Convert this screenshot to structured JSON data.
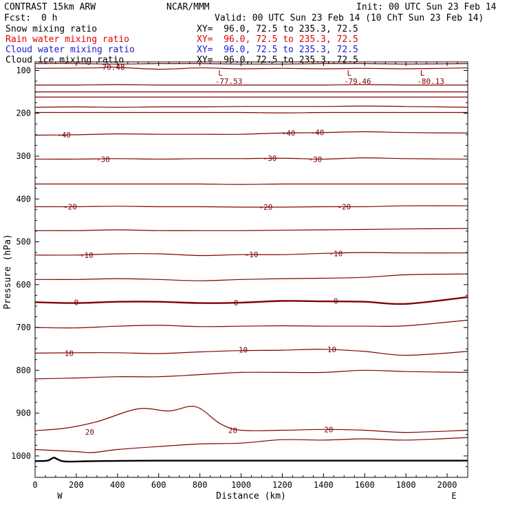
{
  "header": {
    "model": "CONTRAST 15km ARW",
    "org": "NCAR/MMM",
    "init": "Init: 00 UTC Sun 23 Feb 14",
    "fcst_label": "Fcst:",
    "fcst_value": "0 h",
    "valid": "Valid: 00 UTC Sun 23 Feb 14 (10 ChT Sun 23 Feb 14)"
  },
  "fields": [
    {
      "name": "Snow mixing ratio",
      "xy": "XY=  96.0, 72.5 to 235.3, 72.5",
      "color": "#000000"
    },
    {
      "name": "Rain water mixing ratio",
      "xy": "XY=  96.0, 72.5 to 235.3, 72.5",
      "color": "#e00000"
    },
    {
      "name": "Cloud water mixing ratio",
      "xy": "XY=  96.0, 72.5 to 235.3, 72.5",
      "color": "#1a1ad0"
    },
    {
      "name": "Cloud ice mixing ratio",
      "xy": "XY=  96.0, 72.5 to 235.3, 72.5",
      "color": "#000000"
    }
  ],
  "chart_data": {
    "type": "line",
    "xlabel": "Distance (km)",
    "ylabel": "Pressure (hPa)",
    "xlim": [
      0,
      2100
    ],
    "ylim": [
      1050,
      80
    ],
    "x_ticks": [
      0,
      200,
      400,
      600,
      800,
      1000,
      1200,
      1400,
      1600,
      1800,
      2000
    ],
    "y_ticks": [
      100,
      200,
      300,
      400,
      500,
      600,
      700,
      800,
      900,
      1000
    ],
    "direction_labels": {
      "left": "W",
      "right": "E"
    },
    "contour_color": "#800000",
    "contour_labels": [
      {
        "text": "-70.48",
        "x": 370,
        "p": 92
      },
      {
        "text": "-40",
        "x": 140,
        "p": 250
      },
      {
        "text": "-40",
        "x": 1230,
        "p": 246
      },
      {
        "text": "-40",
        "x": 1370,
        "p": 245
      },
      {
        "text": "-30",
        "x": 330,
        "p": 307
      },
      {
        "text": "-30",
        "x": 1140,
        "p": 305
      },
      {
        "text": "-30",
        "x": 1360,
        "p": 307
      },
      {
        "text": "-20",
        "x": 170,
        "p": 418
      },
      {
        "text": "-20",
        "x": 1120,
        "p": 419
      },
      {
        "text": "-20",
        "x": 1500,
        "p": 418
      },
      {
        "text": "-10",
        "x": 250,
        "p": 531
      },
      {
        "text": "-10",
        "x": 1050,
        "p": 530
      },
      {
        "text": "-10",
        "x": 1460,
        "p": 527
      },
      {
        "text": "0",
        "x": 200,
        "p": 641
      },
      {
        "text": "0",
        "x": 975,
        "p": 642
      },
      {
        "text": "0",
        "x": 1460,
        "p": 638
      },
      {
        "text": "10",
        "x": 165,
        "p": 760
      },
      {
        "text": "10",
        "x": 1010,
        "p": 752
      },
      {
        "text": "10",
        "x": 1440,
        "p": 751
      },
      {
        "text": "20",
        "x": 265,
        "p": 944
      },
      {
        "text": "20",
        "x": 960,
        "p": 940
      },
      {
        "text": "20",
        "x": 1425,
        "p": 938
      }
    ],
    "lows": [
      {
        "text": "-77.53",
        "x": 900,
        "p": 115
      },
      {
        "text": "-79.46",
        "x": 1525,
        "p": 115
      },
      {
        "text": "-80.13",
        "x": 1880,
        "p": 115
      }
    ],
    "contours": [
      {
        "x": [
          0,
          200,
          400,
          600,
          800,
          1000,
          1200,
          1400,
          1600,
          1800,
          2100
        ],
        "p": [
          84,
          84,
          85,
          84,
          84,
          85,
          85,
          84,
          84,
          85,
          84
        ]
      },
      {
        "x": [
          0,
          300,
          370,
          600,
          800,
          1000,
          1200,
          1400,
          1600,
          1800,
          2100
        ],
        "p": [
          95,
          94,
          92,
          97,
          94,
          96,
          95,
          96,
          95,
          96,
          94
        ]
      },
      {
        "x": [
          0,
          200,
          400,
          600,
          800,
          1000,
          1200,
          1400,
          1600,
          1800,
          2100
        ],
        "p": [
          134,
          134,
          133,
          134,
          134,
          134,
          134,
          134,
          133,
          134,
          134
        ]
      },
      {
        "x": [
          0,
          200,
          400,
          600,
          800,
          1000,
          1200,
          1400,
          1600,
          1800,
          2100
        ],
        "p": [
          150,
          150,
          150,
          150,
          150,
          150,
          150,
          150,
          150,
          150,
          150
        ]
      },
      {
        "x": [
          0,
          200,
          400,
          600,
          800,
          1000,
          1200,
          1400,
          1600,
          1800,
          2100
        ],
        "p": [
          162,
          162,
          162,
          162,
          162,
          162,
          162,
          162,
          162,
          162,
          162
        ]
      },
      {
        "x": [
          0,
          200,
          400,
          600,
          800,
          1000,
          1200,
          1400,
          1600,
          1800,
          2100
        ],
        "p": [
          186,
          185,
          186,
          185,
          185,
          184,
          184,
          184,
          183,
          184,
          186
        ]
      },
      {
        "x": [
          0,
          200,
          400,
          600,
          800,
          1000,
          1200,
          1400,
          1600,
          1800,
          2100
        ],
        "p": [
          198,
          198,
          198,
          198,
          198,
          198,
          199,
          198,
          198,
          198,
          198
        ]
      },
      {
        "x": [
          0,
          200,
          400,
          600,
          800,
          1000,
          1200,
          1400,
          1600,
          1800,
          2100
        ],
        "p": [
          251,
          250,
          248,
          249,
          249,
          249,
          246,
          245,
          243,
          245,
          246
        ]
      },
      {
        "x": [
          0,
          200,
          400,
          600,
          800,
          1000,
          1200,
          1400,
          1600,
          1800,
          2100
        ],
        "p": [
          307,
          307,
          306,
          307,
          306,
          306,
          305,
          307,
          304,
          306,
          307
        ]
      },
      {
        "x": [
          0,
          200,
          400,
          600,
          800,
          1000,
          1200,
          1400,
          1600,
          1800,
          2100
        ],
        "p": [
          365,
          365,
          365,
          365,
          365,
          366,
          365,
          365,
          365,
          365,
          365
        ]
      },
      {
        "x": [
          0,
          200,
          400,
          600,
          800,
          1000,
          1200,
          1400,
          1600,
          1800,
          2100
        ],
        "p": [
          418,
          418,
          417,
          418,
          418,
          419,
          419,
          418,
          418,
          416,
          416
        ]
      },
      {
        "x": [
          0,
          200,
          400,
          600,
          800,
          1000,
          1200,
          1400,
          1600,
          1800,
          2100
        ],
        "p": [
          474,
          474,
          472,
          474,
          474,
          474,
          473,
          472,
          471,
          470,
          469
        ]
      },
      {
        "x": [
          0,
          200,
          400,
          600,
          800,
          1000,
          1200,
          1400,
          1600,
          1800,
          2100
        ],
        "p": [
          531,
          531,
          528,
          528,
          532,
          530,
          530,
          527,
          525,
          526,
          526
        ]
      },
      {
        "x": [
          0,
          200,
          400,
          600,
          800,
          1000,
          1200,
          1400,
          1600,
          1800,
          2100
        ],
        "p": [
          588,
          588,
          586,
          588,
          591,
          588,
          586,
          585,
          583,
          577,
          575
        ]
      },
      {
        "x": [
          0,
          200,
          400,
          600,
          800,
          1000,
          1200,
          1400,
          1600,
          1800,
          2100
        ],
        "p": [
          641,
          643,
          640,
          640,
          643,
          642,
          638,
          639,
          640,
          645,
          629
        ]
      },
      {
        "x": [
          0,
          200,
          400,
          600,
          800,
          1000,
          1200,
          1400,
          1600,
          1800,
          2100
        ],
        "p": [
          700,
          701,
          697,
          695,
          698,
          697,
          696,
          697,
          697,
          696,
          683
        ]
      },
      {
        "x": [
          0,
          200,
          400,
          600,
          800,
          1000,
          1200,
          1400,
          1600,
          1800,
          2100
        ],
        "p": [
          760,
          759,
          759,
          761,
          757,
          754,
          753,
          751,
          756,
          765,
          756
        ]
      },
      {
        "x": [
          0,
          200,
          400,
          600,
          800,
          1000,
          1200,
          1400,
          1600,
          1800,
          2100
        ],
        "p": [
          820,
          818,
          815,
          815,
          810,
          805,
          805,
          805,
          800,
          803,
          805
        ]
      },
      {
        "x": [
          0,
          150,
          300,
          500,
          650,
          780,
          900,
          1000,
          1200,
          1400,
          1600,
          1800,
          2100
        ],
        "p": [
          941,
          935,
          920,
          890,
          895,
          885,
          925,
          940,
          940,
          938,
          940,
          945,
          940
        ]
      },
      {
        "x": [
          0,
          200,
          280,
          400,
          600,
          800,
          1000,
          1200,
          1400,
          1600,
          1800,
          2100
        ],
        "p": [
          985,
          990,
          992,
          985,
          978,
          972,
          970,
          962,
          963,
          960,
          963,
          957
        ]
      }
    ],
    "ground": {
      "x": [
        0,
        60,
        90,
        110,
        150,
        300,
        600,
        900,
        1200,
        1500,
        1800,
        2100
      ],
      "p": [
        1012,
        1011,
        1004,
        1008,
        1013,
        1012,
        1011,
        1011,
        1011,
        1011,
        1011,
        1011
      ]
    }
  }
}
